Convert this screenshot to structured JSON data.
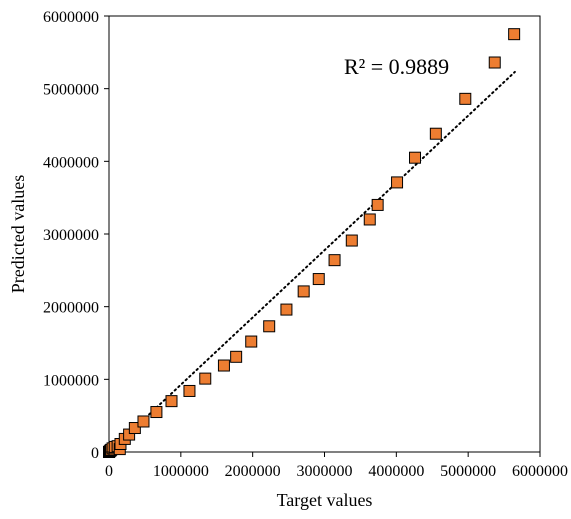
{
  "chart_data": {
    "type": "scatter",
    "xlabel": "Target values",
    "ylabel": "Predicted values",
    "xlim": [
      0,
      6000000
    ],
    "ylim": [
      0,
      6000000
    ],
    "xticks": [
      0,
      1000000,
      2000000,
      3000000,
      4000000,
      5000000,
      6000000
    ],
    "yticks": [
      0,
      1000000,
      2000000,
      3000000,
      4000000,
      5000000,
      6000000
    ],
    "xtick_labels": [
      "0",
      "1000000",
      "2000000",
      "3000000",
      "4000000",
      "5000000",
      "6000000"
    ],
    "ytick_labels": [
      "0",
      "1000000",
      "2000000",
      "3000000",
      "4000000",
      "5000000",
      "6000000"
    ],
    "grid": false,
    "legend": false,
    "annotation": "R² = 0.9889",
    "marker_color": "#ED7D31",
    "marker_edge_color": "#000000",
    "trendline": {
      "style": "dotted",
      "color": "#000000",
      "points": [
        [
          0,
          0
        ],
        [
          5650000,
          5230000
        ]
      ]
    },
    "series": [
      {
        "values": [
          {
            "x": 0,
            "y": 0
          },
          {
            "x": 10000,
            "y": 10000
          },
          {
            "x": 20000,
            "y": 20000
          },
          {
            "x": 30000,
            "y": 30000
          },
          {
            "x": 50000,
            "y": 50000
          },
          {
            "x": 80000,
            "y": 70000
          },
          {
            "x": 120000,
            "y": 80000
          },
          {
            "x": 150000,
            "y": 40000
          },
          {
            "x": 160000,
            "y": 110000
          },
          {
            "x": 220000,
            "y": 180000
          },
          {
            "x": 280000,
            "y": 240000
          },
          {
            "x": 360000,
            "y": 330000
          },
          {
            "x": 480000,
            "y": 420000
          },
          {
            "x": 660000,
            "y": 550000
          },
          {
            "x": 870000,
            "y": 700000
          },
          {
            "x": 1120000,
            "y": 840000
          },
          {
            "x": 1340000,
            "y": 1010000
          },
          {
            "x": 1600000,
            "y": 1190000
          },
          {
            "x": 1770000,
            "y": 1310000
          },
          {
            "x": 1980000,
            "y": 1520000
          },
          {
            "x": 2230000,
            "y": 1730000
          },
          {
            "x": 2470000,
            "y": 1960000
          },
          {
            "x": 2710000,
            "y": 2210000
          },
          {
            "x": 2920000,
            "y": 2380000
          },
          {
            "x": 3140000,
            "y": 2640000
          },
          {
            "x": 3380000,
            "y": 2910000
          },
          {
            "x": 3630000,
            "y": 3200000
          },
          {
            "x": 3740000,
            "y": 3400000
          },
          {
            "x": 4010000,
            "y": 3710000
          },
          {
            "x": 4260000,
            "y": 4050000
          },
          {
            "x": 4550000,
            "y": 4380000
          },
          {
            "x": 4960000,
            "y": 4860000
          },
          {
            "x": 5370000,
            "y": 5360000
          },
          {
            "x": 5640000,
            "y": 5750000
          }
        ]
      }
    ]
  }
}
